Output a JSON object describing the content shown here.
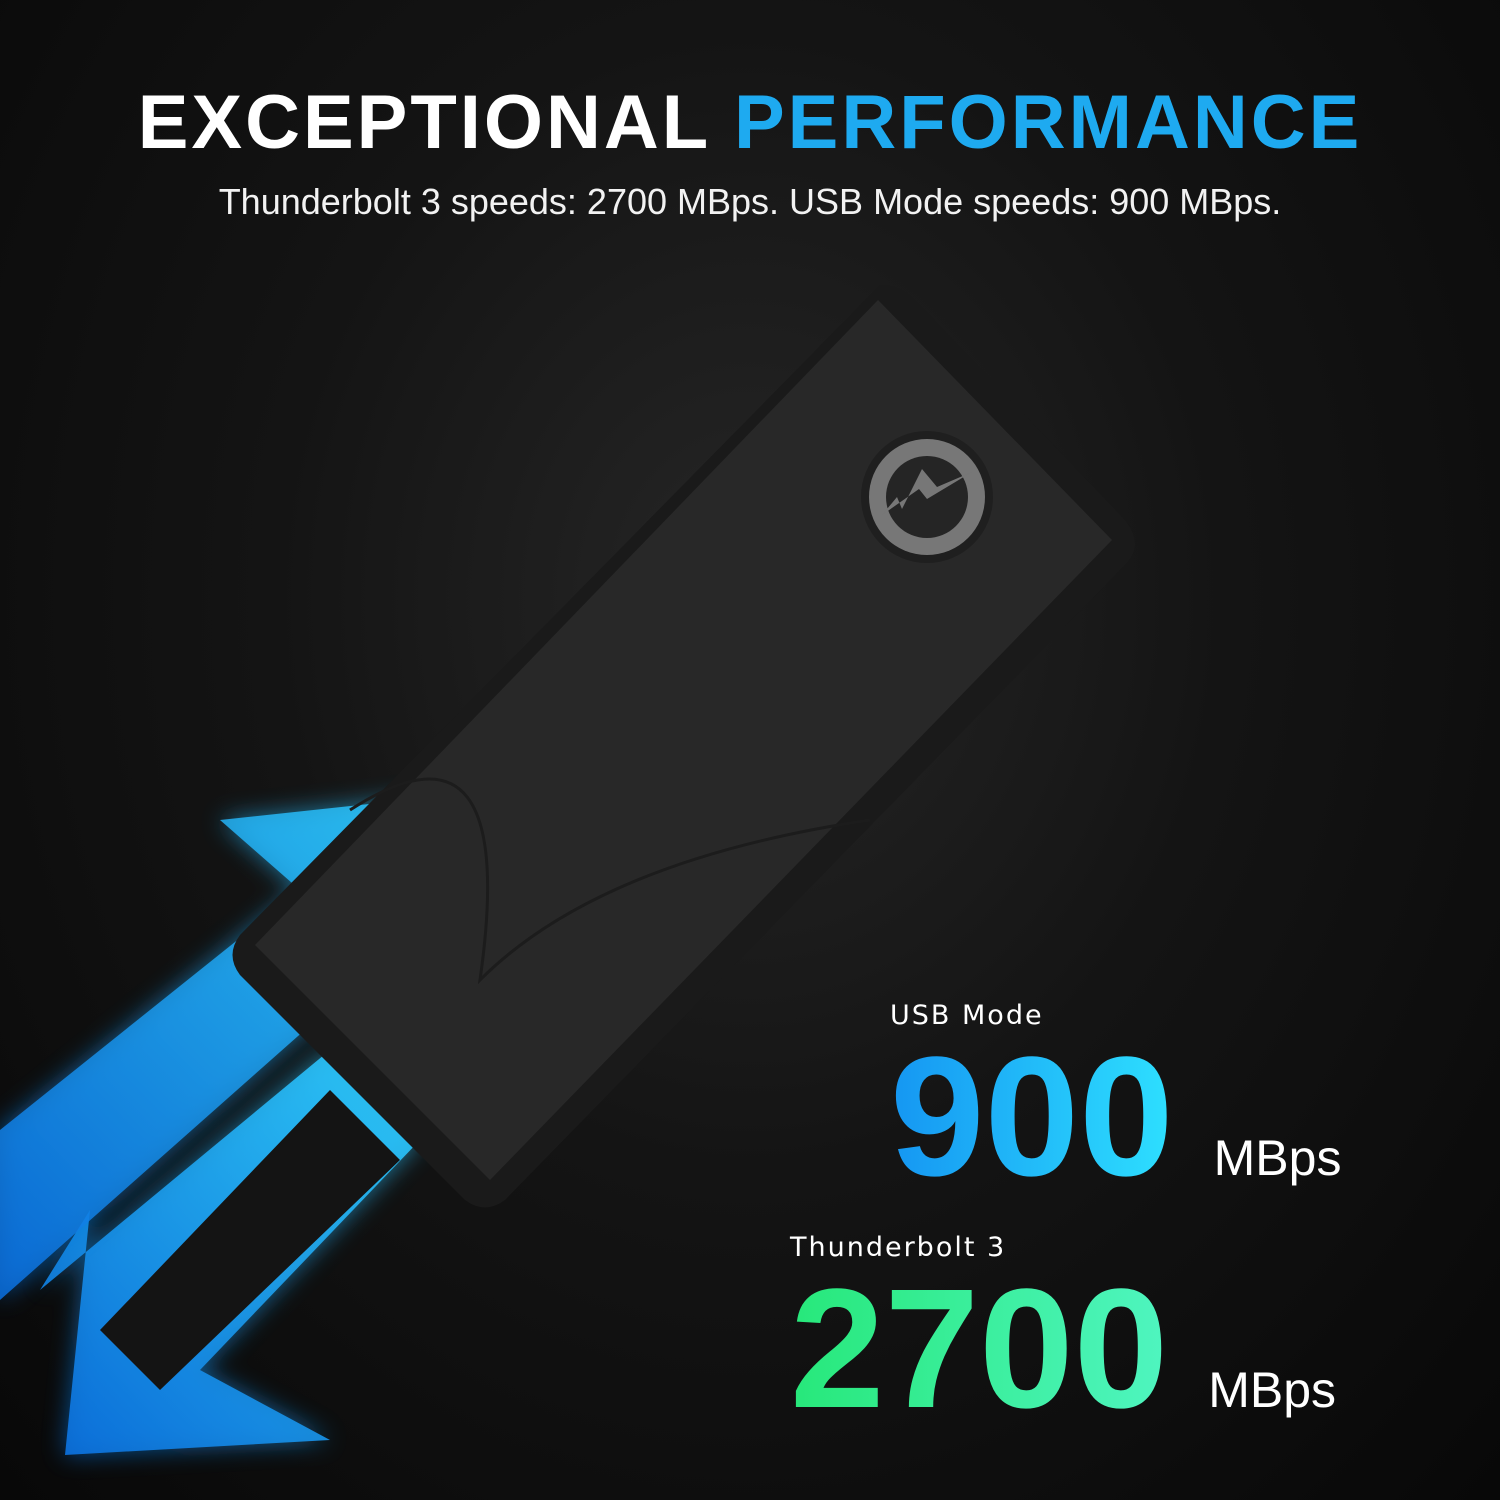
{
  "headline": {
    "part1": "EXCEPTIONAL",
    "part2": "PERFORMANCE"
  },
  "subline": "Thunderbolt 3 speeds: 2700 MBps. USB Mode speeds: 900 MBps.",
  "usb": {
    "label": "USB Mode",
    "value": "900",
    "unit": "MBps"
  },
  "thunderbolt": {
    "label": "Thunderbolt 3",
    "value": "2700",
    "unit": "MBps"
  },
  "device_icon": "thunderbolt-logo-icon",
  "colors": {
    "accent_blue": "#1eaaf0",
    "accent_green": "#3cf0a0",
    "background": "#0b0b0b"
  }
}
